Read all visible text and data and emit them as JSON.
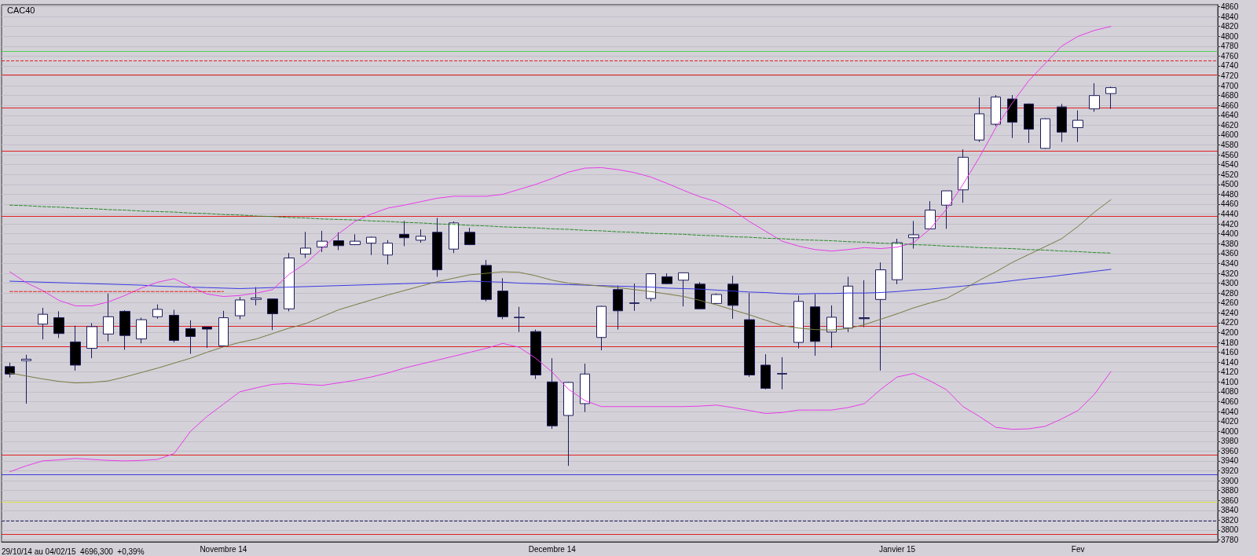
{
  "chart_data": {
    "type": "candlestick",
    "title": "CAC40",
    "annotations": [
      "29/10/14 au 04/02/15  4696,300  +0,39%"
    ],
    "categories": [
      null,
      null,
      null,
      null,
      null,
      null,
      null,
      null,
      null,
      null,
      null,
      null,
      null,
      "Novembre 14",
      null,
      null,
      null,
      null,
      null,
      null,
      null,
      null,
      null,
      null,
      null,
      null,
      null,
      null,
      null,
      null,
      null,
      null,
      null,
      "Decembre 14",
      null,
      null,
      null,
      null,
      null,
      null,
      null,
      null,
      null,
      null,
      null,
      null,
      null,
      null,
      null,
      null,
      null,
      null,
      null,
      null,
      "Janvier 15",
      null,
      null,
      null,
      null,
      null,
      null,
      null,
      null,
      null,
      null,
      "Fev",
      null,
      null
    ],
    "series": [
      {
        "type": "candlestick",
        "ohlc": [
          [
            4131,
            4139,
            4109,
            4116
          ],
          [
            4143,
            4155,
            4056,
            4146
          ],
          [
            4217,
            4250,
            4186,
            4237
          ],
          [
            4230,
            4243,
            4189,
            4198
          ],
          [
            4181,
            4214,
            4123,
            4134
          ],
          [
            4168,
            4219,
            4148,
            4212
          ],
          [
            4197,
            4279,
            4182,
            4232
          ],
          [
            4243,
            4245,
            4165,
            4194
          ],
          [
            4187,
            4230,
            4178,
            4226
          ],
          [
            4232,
            4257,
            4228,
            4247
          ],
          [
            4235,
            4246,
            4180,
            4184
          ],
          [
            4208,
            4225,
            4157,
            4192
          ],
          [
            4211,
            4212,
            4169,
            4207
          ],
          [
            4173,
            4244,
            4172,
            4230
          ],
          [
            4234,
            4272,
            4227,
            4266
          ],
          [
            4267,
            4292,
            4255,
            4270
          ],
          [
            4268,
            4269,
            4205,
            4238
          ],
          [
            4248,
            4361,
            4243,
            4351
          ],
          [
            4359,
            4404,
            4351,
            4371
          ],
          [
            4373,
            4406,
            4363,
            4385
          ],
          [
            4386,
            4403,
            4367,
            4376
          ],
          [
            4378,
            4399,
            4377,
            4385
          ],
          [
            4381,
            4394,
            4357,
            4393
          ],
          [
            4357,
            4387,
            4338,
            4381
          ],
          [
            4399,
            4426,
            4375,
            4392
          ],
          [
            4387,
            4409,
            4382,
            4395
          ],
          [
            4403,
            4432,
            4313,
            4327
          ],
          [
            4369,
            4425,
            4361,
            4422
          ],
          [
            4403,
            4412,
            4377,
            4378
          ],
          [
            4336,
            4347,
            4263,
            4267
          ],
          [
            4284,
            4310,
            4227,
            4232
          ],
          [
            4231,
            4252,
            4201,
            4230
          ],
          [
            4202,
            4206,
            4106,
            4114
          ],
          [
            4100,
            4148,
            4005,
            4011
          ],
          [
            4032,
            4100,
            3930,
            4099
          ],
          [
            4056,
            4137,
            4039,
            4116
          ],
          [
            4190,
            4254,
            4164,
            4253
          ],
          [
            4287,
            4295,
            4206,
            4244
          ],
          [
            4260,
            4299,
            4244,
            4259
          ],
          [
            4269,
            4320,
            4263,
            4319
          ],
          [
            4313,
            4320,
            4298,
            4299
          ],
          [
            4306,
            4321,
            4253,
            4321
          ],
          [
            4298,
            4302,
            4247,
            4248
          ],
          [
            4259,
            4279,
            4258,
            4277
          ],
          [
            4298,
            4315,
            4228,
            4255
          ],
          [
            4226,
            4280,
            4110,
            4114
          ],
          [
            4134,
            4156,
            4085,
            4087
          ],
          [
            4117,
            4150,
            4085,
            4116
          ],
          [
            4180,
            4275,
            4168,
            4263
          ],
          [
            4252,
            4278,
            4153,
            4182
          ],
          [
            4201,
            4255,
            4169,
            4231
          ],
          [
            4209,
            4313,
            4201,
            4294
          ],
          [
            4230,
            4306,
            4211,
            4228
          ],
          [
            4267,
            4342,
            4123,
            4327
          ],
          [
            4307,
            4390,
            4298,
            4382
          ],
          [
            4392,
            4426,
            4370,
            4398
          ],
          [
            4410,
            4466,
            4409,
            4448
          ],
          [
            4458,
            4487,
            4410,
            4487
          ],
          [
            4489,
            4571,
            4463,
            4555
          ],
          [
            4590,
            4676,
            4586,
            4643
          ],
          [
            4622,
            4681,
            4618,
            4677
          ],
          [
            4673,
            4681,
            4594,
            4626
          ],
          [
            4663,
            4664,
            4584,
            4612
          ],
          [
            4573,
            4634,
            4572,
            4633
          ],
          [
            4657,
            4663,
            4586,
            4606
          ],
          [
            4615,
            4650,
            4586,
            4630
          ],
          [
            4653,
            4705,
            4647,
            4680
          ],
          [
            4684,
            4698,
            4653,
            4696
          ]
        ]
      },
      {
        "type": "line",
        "color": "#3a3ae0",
        "values": [
          4304,
          4303,
          4302,
          4301,
          4300,
          4299,
          4298,
          4297,
          4296,
          4294,
          4293,
          4292,
          4291,
          4290,
          4289,
          4290,
          4291,
          4292,
          4293,
          4294,
          4295,
          4296,
          4297,
          4298,
          4299,
          4300,
          4301,
          4302,
          4304,
          4303,
          4302,
          4300,
          4299,
          4298,
          4297,
          4296,
          4295,
          4294,
          4293,
          4292,
          4290,
          4289,
          4288,
          4286,
          4284,
          4282,
          4281,
          4279,
          4278,
          4279,
          4279,
          4280,
          4280,
          4281,
          4283,
          4286,
          4288,
          4291,
          4294,
          4298,
          4301,
          4305,
          4309,
          4312,
          4316,
          4320,
          4324,
          4328
        ]
      },
      {
        "type": "line",
        "color": "#7a7a40",
        "values": [
          4118,
          4112,
          4106,
          4101,
          4098,
          4099,
          4102,
          4110,
          4119,
          4128,
          4138,
          4148,
          4160,
          4171,
          4180,
          4187,
          4198,
          4209,
          4218,
          4232,
          4246,
          4256,
          4266,
          4276,
          4285,
          4294,
          4303,
          4310,
          4317,
          4320,
          4323,
          4322,
          4315,
          4306,
          4300,
          4297,
          4294,
          4291,
          4287,
          4283,
          4278,
          4273,
          4265,
          4256,
          4246,
          4236,
          4225,
          4214,
          4209,
          4206,
          4205,
          4208,
          4216,
          4227,
          4238,
          4250,
          4260,
          4269,
          4287,
          4306,
          4323,
          4342,
          4358,
          4374,
          4390,
          4415,
          4444,
          4469
        ]
      },
      {
        "type": "line",
        "color": "#e83ce8",
        "values": [
          4323,
          4301,
          4285,
          4265,
          4254,
          4254,
          4262,
          4275,
          4290,
          4302,
          4309,
          4293,
          4278,
          4273,
          4275,
          4280,
          4287,
          4318,
          4340,
          4370,
          4400,
          4425,
          4440,
          4452,
          4458,
          4465,
          4472,
          4476,
          4476,
          4476,
          4480,
          4490,
          4500,
          4512,
          4525,
          4533,
          4534,
          4530,
          4524,
          4515,
          4502,
          4488,
          4475,
          4465,
          4448,
          4425,
          4405,
          4385,
          4375,
          4368,
          4365,
          4368,
          4372,
          4370,
          4373,
          4382,
          4410,
          4450,
          4500,
          4555,
          4615,
          4665,
          4710,
          4745,
          4780,
          4800,
          4812,
          4820
        ]
      },
      {
        "type": "line",
        "color": "#e83ce8",
        "values": [
          3918,
          3930,
          3940,
          3942,
          3945,
          3943,
          3941,
          3940,
          3941,
          3943,
          3955,
          4000,
          4030,
          4055,
          4080,
          4088,
          4095,
          4097,
          4095,
          4093,
          4098,
          4103,
          4110,
          4118,
          4128,
          4136,
          4144,
          4152,
          4160,
          4168,
          4178,
          4170,
          4148,
          4120,
          4085,
          4062,
          4050,
          4050,
          4050,
          4050,
          4050,
          4050,
          4051,
          4053,
          4048,
          4042,
          4036,
          4038,
          4043,
          4043,
          4043,
          4048,
          4056,
          4085,
          4110,
          4117,
          4102,
          4084,
          4050,
          4030,
          4008,
          4004,
          4005,
          4010,
          4025,
          4042,
          4075,
          4121
        ]
      },
      {
        "type": "line",
        "color": "#2a8a2a",
        "line_style": "dashed",
        "values": [
          4458,
          4457,
          4455,
          4454,
          4452,
          4451,
          4449,
          4448,
          4446,
          4445,
          4444,
          4442,
          4441,
          4439,
          4438,
          4436,
          4435,
          4433,
          4432,
          4430,
          4429,
          4428,
          4426,
          4425,
          4423,
          4422,
          4420,
          4419,
          4417,
          4416,
          4414,
          4413,
          4412,
          4410,
          4409,
          4407,
          4406,
          4404,
          4403,
          4401,
          4400,
          4399,
          4397,
          4396,
          4394,
          4393,
          4391,
          4390,
          4388,
          4387,
          4386,
          4384,
          4383,
          4381,
          4380,
          4378,
          4377,
          4375,
          4374,
          4372,
          4371,
          4370,
          4368,
          4367,
          4365,
          4364,
          4362,
          4361
        ]
      },
      {
        "type": "line",
        "color": "#e02020",
        "line_style": "dashed",
        "values": [
          4283,
          4283,
          4283,
          4283,
          4283,
          4283,
          4283,
          4283,
          4283,
          4283,
          4283,
          4283,
          4283,
          4283,
          null,
          null,
          null,
          null,
          null,
          null,
          null,
          null,
          null,
          null,
          null,
          null,
          null,
          null,
          null,
          null,
          null,
          null,
          null,
          null,
          null,
          null,
          null,
          null,
          null,
          null,
          null,
          null,
          null,
          null,
          null,
          null,
          null,
          null,
          null,
          null,
          null,
          null,
          null,
          null,
          null,
          null,
          null,
          null,
          null,
          null,
          null,
          null,
          null,
          null,
          null,
          null,
          null,
          null
        ]
      }
    ],
    "ref_lines": [
      {
        "axis": "y",
        "value": 4770,
        "color": "#50d050"
      },
      {
        "axis": "y",
        "value": 4750,
        "color": "#e02020",
        "line_style": "dashed"
      },
      {
        "axis": "y",
        "value": 4722,
        "color": "#e02020"
      },
      {
        "axis": "y",
        "value": 4655,
        "color": "#e02020"
      },
      {
        "axis": "y",
        "value": 4568,
        "color": "#e02020"
      },
      {
        "axis": "y",
        "value": 4435,
        "color": "#e02020"
      },
      {
        "axis": "y",
        "value": 4213,
        "color": "#e02020"
      },
      {
        "axis": "y",
        "value": 4172,
        "color": "#e02020"
      },
      {
        "axis": "y",
        "value": 3952,
        "color": "#e02020"
      },
      {
        "axis": "y",
        "value": 3912,
        "color": "#3a3ae0"
      },
      {
        "axis": "y",
        "value": 3856,
        "color": "#e0e040"
      },
      {
        "axis": "y",
        "value": 3818,
        "color": "#202060",
        "line_style": "dashed"
      },
      {
        "axis": "y",
        "value": 3792,
        "color": "#e02020"
      }
    ],
    "ylim": [
      3776,
      4864
    ],
    "yticks": [
      3780,
      3800,
      3820,
      3840,
      3860,
      3880,
      3900,
      3920,
      3940,
      3960,
      3980,
      4000,
      4020,
      4040,
      4060,
      4080,
      4100,
      4120,
      4140,
      4160,
      4180,
      4200,
      4220,
      4240,
      4260,
      4280,
      4300,
      4320,
      4340,
      4360,
      4380,
      4400,
      4420,
      4440,
      4460,
      4480,
      4500,
      4520,
      4540,
      4560,
      4580,
      4600,
      4620,
      4640,
      4660,
      4680,
      4700,
      4720,
      4740,
      4760,
      4780,
      4800,
      4820,
      4840,
      4860
    ],
    "grid": "y"
  }
}
